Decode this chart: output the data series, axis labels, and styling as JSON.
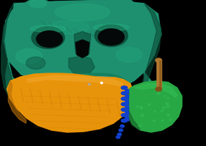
{
  "bg_color": "#000000",
  "skull_color": "#1e9070",
  "skull_mid": "#158060",
  "skull_dark": "#0a4a35",
  "skull_light": "#25b080",
  "mandible_color": "#e8940a",
  "mandible_dark": "#b87008",
  "mandible_light": "#f0a830",
  "fibula_color": "#28a845",
  "fibula_dark": "#166028",
  "fibula_light": "#35c055",
  "plate_color": "#1040cc",
  "pin_color": "#b07830",
  "pin_dark": "#805018",
  "figsize": [
    3.0,
    2.13
  ],
  "dpi": 100
}
